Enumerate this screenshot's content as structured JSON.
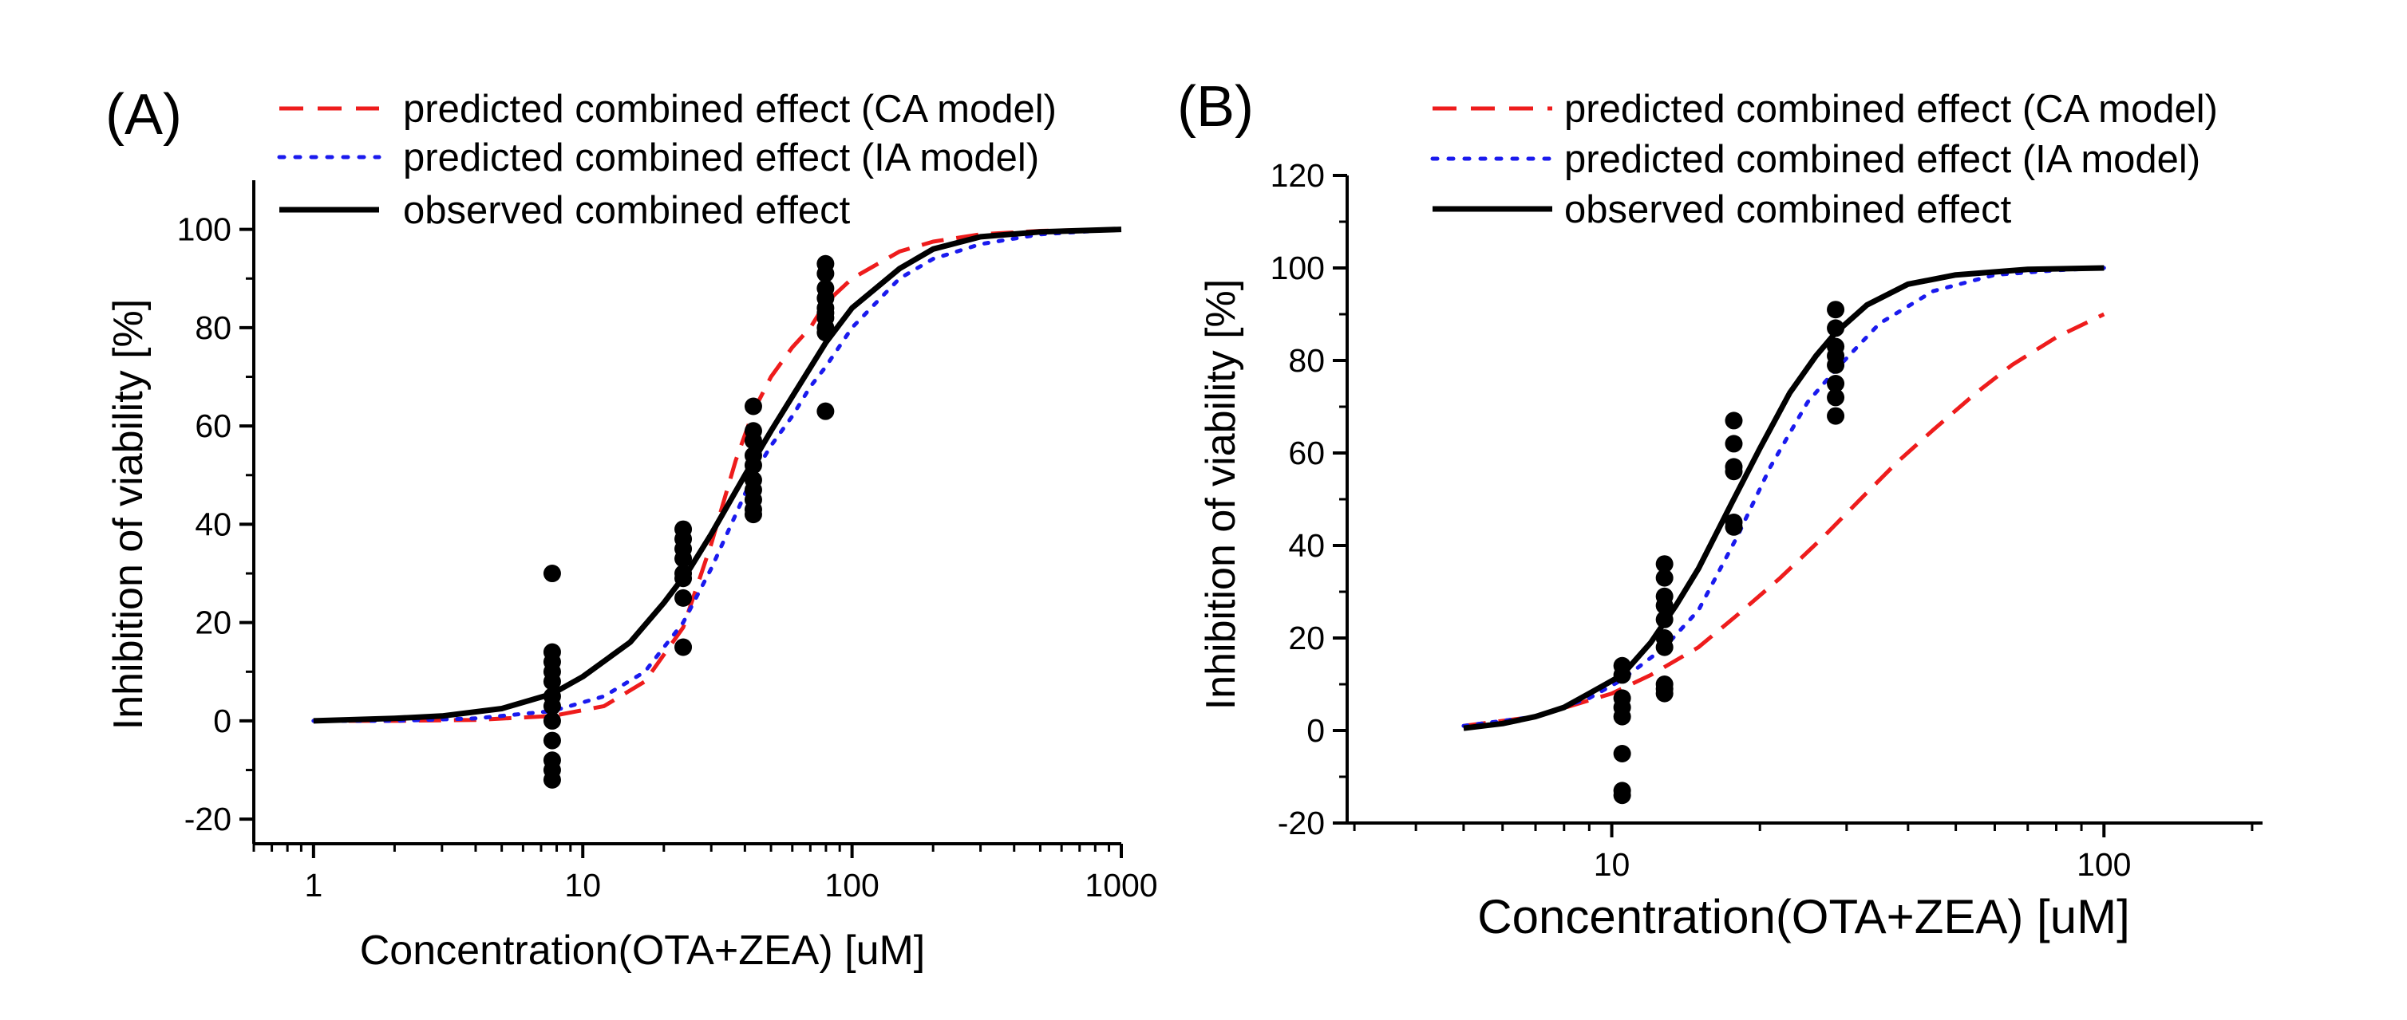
{
  "colors": {
    "ca_model": "#ee1c1c",
    "ia_model": "#1a1aee",
    "observed": "#000000",
    "points": "#000000"
  },
  "legend": [
    {
      "key": "ca",
      "label": "predicted combined effect (CA model)"
    },
    {
      "key": "ia",
      "label": "predicted combined effect (IA model)"
    },
    {
      "key": "obs",
      "label": "observed combined effect"
    }
  ],
  "chart_data": [
    {
      "panel": "(A)",
      "type": "scatter",
      "xscale": "log",
      "xlabel": "Concentration(OTA+ZEA) [uM]",
      "ylabel": "Inhibition of  viability [%]",
      "xlim": [
        0.6,
        1000
      ],
      "ylim": [
        -25,
        110
      ],
      "xticks": [
        1,
        10,
        100,
        1000
      ],
      "xtick_labels": [
        "1",
        "10",
        "100",
        "1000"
      ],
      "yticks": [
        -20,
        0,
        20,
        40,
        60,
        80,
        100
      ],
      "ytick_labels": [
        "-20",
        "0",
        "20",
        "40",
        "60",
        "80",
        "100"
      ],
      "series": [
        {
          "name": "predicted combined effect (CA model)",
          "key": "ca",
          "kind": "line",
          "style": "dashed",
          "x": [
            1,
            2,
            4,
            7.7,
            12,
            17,
            23.6,
            30,
            37,
            43,
            50,
            60,
            70,
            79.7,
            100,
            150,
            200,
            300,
            500,
            1000
          ],
          "y": [
            0,
            0,
            0.2,
            1,
            3,
            8,
            19,
            36,
            53,
            63,
            70,
            76,
            80,
            85,
            90,
            95.5,
            97.5,
            99,
            99.7,
            100
          ]
        },
        {
          "name": "predicted combined effect (IA model)",
          "key": "ia",
          "kind": "line",
          "style": "dotted",
          "x": [
            1,
            2,
            4,
            7.7,
            12,
            17,
            23.6,
            30,
            37,
            43,
            50,
            60,
            70,
            79.7,
            100,
            150,
            200,
            300,
            500,
            1000
          ],
          "y": [
            0,
            0,
            0.5,
            2,
            5,
            10,
            20,
            31,
            42,
            50,
            56,
            62,
            68,
            72,
            80,
            90,
            94,
            97,
            99,
            100
          ]
        },
        {
          "name": "observed combined effect",
          "key": "obs",
          "kind": "line",
          "style": "solid",
          "x": [
            1,
            2,
            3,
            5,
            7.7,
            10,
            15,
            20,
            25,
            30,
            40,
            50,
            60,
            80,
            100,
            150,
            200,
            300,
            500,
            1000
          ],
          "y": [
            0,
            0.5,
            1,
            2.5,
            5.5,
            9,
            16,
            24,
            31,
            38,
            50,
            59,
            66,
            77,
            84,
            92,
            96,
            98.5,
            99.5,
            100
          ]
        },
        {
          "name": "observations",
          "key": "points",
          "kind": "scatter",
          "x": [
            7.7,
            7.7,
            7.7,
            7.7,
            7.7,
            7.7,
            7.7,
            7.7,
            7.7,
            7.7,
            7.7,
            7.7,
            23.6,
            23.6,
            23.6,
            23.6,
            23.6,
            23.6,
            23.6,
            23.6,
            43,
            43,
            43,
            43,
            43,
            43,
            43,
            43,
            43,
            43,
            79.7,
            79.7,
            79.7,
            79.7,
            79.7,
            79.7,
            79.7,
            79.7,
            79.7,
            79.7
          ],
          "y": [
            30,
            14,
            12,
            10,
            8,
            5,
            3,
            0,
            -4,
            -8,
            -10,
            -12,
            39,
            37,
            35,
            33,
            30,
            29,
            25,
            15,
            64,
            59,
            57,
            54,
            52,
            49,
            47,
            45,
            43,
            42,
            93,
            91,
            88,
            86,
            84,
            83,
            82,
            80,
            79,
            63
          ]
        }
      ]
    },
    {
      "panel": "(B)",
      "type": "scatter",
      "xscale": "log",
      "xlabel": "Concentration(OTA+ZEA) [uM]",
      "ylabel": "Inhibition of  viability [%]",
      "xlim": [
        2.9,
        210
      ],
      "ylim": [
        -20,
        120
      ],
      "xticks": [
        10,
        100
      ],
      "xtick_labels": [
        "10",
        "100"
      ],
      "yticks": [
        -20,
        0,
        20,
        40,
        60,
        80,
        100,
        120
      ],
      "ytick_labels": [
        "-20",
        "0",
        "20",
        "40",
        "60",
        "80",
        "100",
        "120"
      ],
      "series": [
        {
          "name": "predicted combined effect (CA model)",
          "key": "ca",
          "kind": "line",
          "style": "dashed",
          "x": [
            5,
            7,
            10,
            12,
            15,
            18,
            22,
            27,
            32,
            38,
            45,
            55,
            65,
            80,
            100
          ],
          "y": [
            1,
            3,
            8,
            12,
            18,
            25,
            33,
            42,
            50,
            58,
            65,
            73,
            79,
            85,
            90
          ]
        },
        {
          "name": "predicted combined effect (IA model)",
          "key": "ia",
          "kind": "line",
          "style": "dotted",
          "x": [
            5,
            7,
            9,
            10.5,
            12.8,
            15,
            18,
            21,
            25,
            28.5,
            35,
            45,
            60,
            80,
            100
          ],
          "y": [
            1,
            3,
            7,
            11,
            18,
            26,
            42,
            57,
            71,
            78,
            88,
            95,
            98.5,
            99.5,
            100
          ]
        },
        {
          "name": "observed combined effect",
          "key": "obs",
          "kind": "line",
          "style": "solid",
          "x": [
            5,
            6,
            7,
            8,
            9,
            10.5,
            12,
            13.5,
            15,
            17.5,
            20,
            23,
            26,
            28.5,
            33,
            40,
            50,
            70,
            100
          ],
          "y": [
            0.5,
            1.5,
            3,
            5,
            8,
            12,
            19,
            27,
            35,
            49,
            61,
            73,
            81,
            86,
            92,
            96.5,
            98.5,
            99.7,
            100
          ]
        },
        {
          "name": "observations",
          "key": "points",
          "kind": "scatter",
          "x": [
            10.5,
            10.5,
            10.5,
            10.5,
            10.5,
            10.5,
            10.5,
            10.5,
            12.8,
            12.8,
            12.8,
            12.8,
            12.8,
            12.8,
            12.8,
            12.8,
            12.8,
            12.8,
            17.7,
            17.7,
            17.7,
            17.7,
            17.7,
            17.7,
            28.5,
            28.5,
            28.5,
            28.5,
            28.5,
            28.5,
            28.5,
            28.5
          ],
          "y": [
            14,
            12,
            7,
            5,
            3,
            -5,
            -13,
            -14,
            36,
            33,
            29,
            27,
            24,
            20,
            18,
            10,
            9,
            8,
            67,
            62,
            57,
            56,
            45,
            44,
            91,
            87,
            83,
            81,
            79,
            75,
            72,
            68
          ]
        }
      ]
    }
  ]
}
